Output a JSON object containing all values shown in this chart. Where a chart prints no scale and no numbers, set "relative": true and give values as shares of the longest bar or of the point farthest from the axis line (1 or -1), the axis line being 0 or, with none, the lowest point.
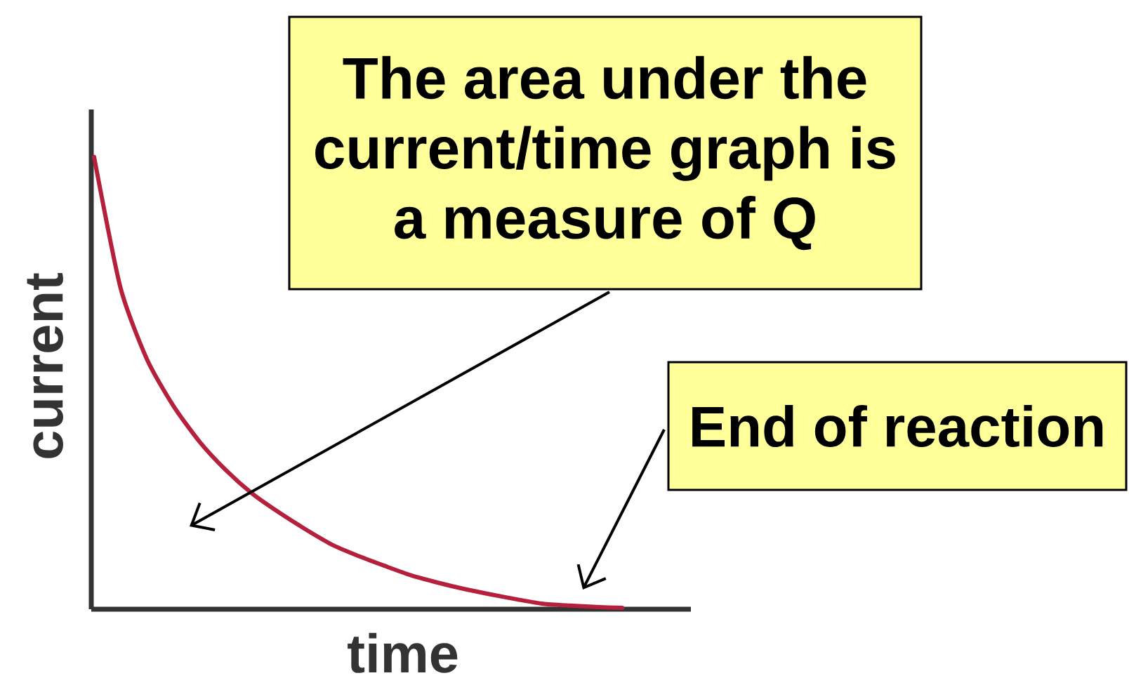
{
  "chart_data": {
    "type": "line",
    "relative": true,
    "xlabel": "time",
    "ylabel": "current",
    "marker": "none",
    "line_style": "solid",
    "categories": [
      null,
      null,
      null,
      null,
      null,
      null,
      null,
      null,
      null,
      null,
      null,
      null,
      null,
      null,
      null,
      null,
      null,
      null,
      null,
      null,
      null
    ],
    "series": [
      {
        "color": "#b5213c",
        "values": [
          1,
          0.711,
          0.553,
          0.45,
          0.37,
          0.307,
          0.255,
          0.214,
          0.177,
          0.143,
          0.118,
          0.096,
          0.075,
          0.059,
          0.045,
          0.033,
          0.022,
          0.012,
          0.008,
          0.005,
          0.003
        ]
      }
    ],
    "annotations": [
      "The area under the current/time graph is a measure of Q",
      "End of reaction"
    ]
  }
}
